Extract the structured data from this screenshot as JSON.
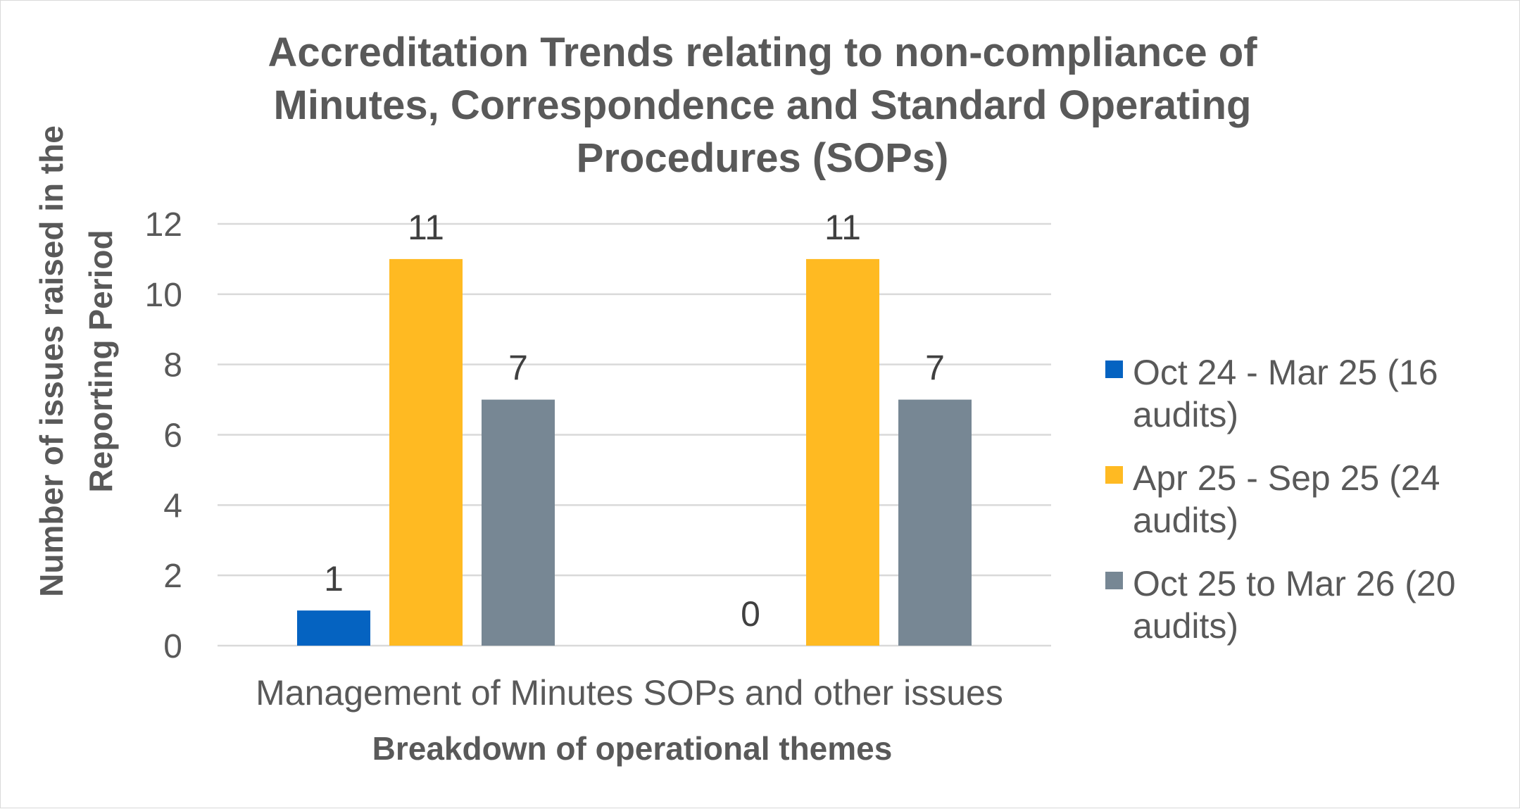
{
  "chart_data": {
    "type": "bar",
    "title_lines": [
      "Accreditation Trends relating to non-compliance of",
      "Minutes, Correspondence and Standard Operating",
      "Procedures (SOPs)"
    ],
    "title": "Accreditation Trends relating to non-compliance of Minutes, Correspondence and Standard Operating Procedures (SOPs)",
    "xlabel": "Breakdown of operational themes",
    "ylabel": "Number of issues raised in the Reporting Period",
    "ylabel_lines": [
      "Number of issues raised in the",
      "Reporting Period"
    ],
    "category_label": "Management of Minutes SOPs and other issues",
    "group_count": 2,
    "ylim": [
      0,
      12
    ],
    "yticks": [
      0,
      2,
      4,
      6,
      8,
      10,
      12
    ],
    "grid": true,
    "legend_position": "right",
    "series": [
      {
        "name": "Oct 24 - Mar 25 (16 audits)",
        "legend_lines": [
          "Oct 24 - Mar 25 (16",
          "audits)"
        ],
        "color": "#0563c1",
        "values": [
          1,
          0
        ]
      },
      {
        "name": "Apr 25 - Sep 25 (24 audits)",
        "legend_lines": [
          "Apr 25 - Sep 25 (24",
          "audits)"
        ],
        "color": "#ffba22",
        "values": [
          11,
          11
        ]
      },
      {
        "name": "Oct 25 to Mar 26 (20 audits)",
        "legend_lines": [
          "Oct 25 to Mar 26 (20",
          "audits)"
        ],
        "color": "#778794",
        "values": [
          7,
          7
        ]
      }
    ]
  }
}
